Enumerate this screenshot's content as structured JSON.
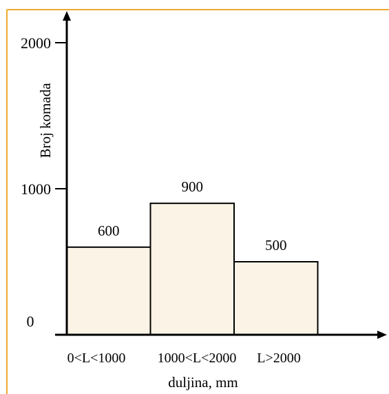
{
  "colors": {
    "frame": "#F0A830",
    "bar_fill": "#FBF3E6",
    "bar_stroke": "#000000",
    "axis": "#000000"
  },
  "chart_data": {
    "type": "bar",
    "categories": [
      "0<L<1000",
      "1000<L<2000",
      "L>2000"
    ],
    "values": [
      600,
      900,
      500
    ],
    "data_labels": [
      "600",
      "900",
      "500"
    ],
    "title": "",
    "xlabel": "duljina, mm",
    "ylabel": "Broj komada",
    "ylim": [
      0,
      2000
    ],
    "yticks": [
      0,
      1000,
      2000
    ],
    "ytick_labels": [
      "0",
      "1000",
      "2000"
    ],
    "grid": false,
    "legend": "none"
  }
}
